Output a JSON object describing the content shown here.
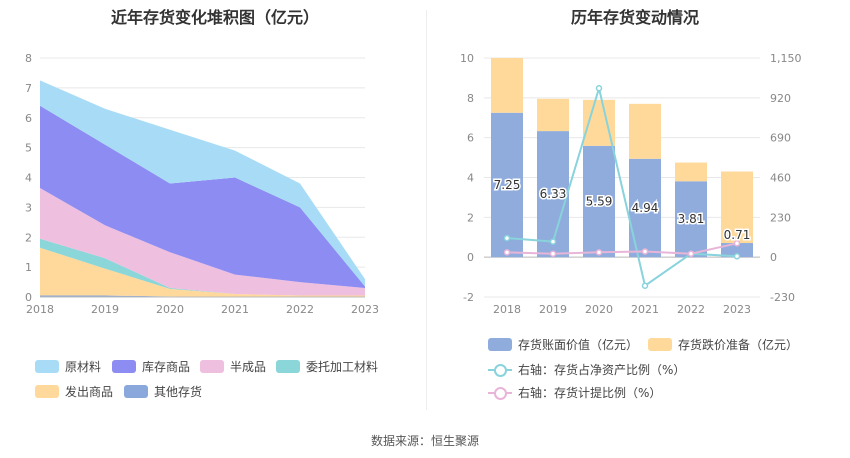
{
  "left_chart": {
    "title": "近年存货变化堆积图（亿元）"
  },
  "right_chart": {
    "title": "历年存货变动情况"
  },
  "source": "数据来源：恒生聚源",
  "chart_data": [
    {
      "type": "area",
      "title": "近年存货变化堆积图（亿元）",
      "x": [
        "2018",
        "2019",
        "2020",
        "2021",
        "2022",
        "2023"
      ],
      "ylim": [
        0,
        8
      ],
      "yticks": [
        "0",
        "1",
        "2",
        "3",
        "4",
        "5",
        "6",
        "7",
        "8"
      ],
      "stacked": true,
      "grid": true,
      "legend_position": "bottom",
      "series": [
        {
          "name": "其他存货",
          "color": "#8aa8dc",
          "values": [
            0.05,
            0.05,
            0.02,
            0.0,
            0.0,
            0.0
          ]
        },
        {
          "name": "发出商品",
          "color": "#ffd89b",
          "values": [
            1.6,
            0.9,
            0.25,
            0.1,
            0.05,
            0.05
          ]
        },
        {
          "name": "委托加工材料",
          "color": "#8ad6d8",
          "values": [
            0.3,
            0.35,
            0.03,
            0.0,
            0.0,
            0.0
          ]
        },
        {
          "name": "半成品",
          "color": "#efbfdf",
          "values": [
            1.7,
            1.1,
            1.2,
            0.65,
            0.45,
            0.25
          ]
        },
        {
          "name": "库存商品",
          "color": "#8c8cf2",
          "values": [
            2.75,
            2.7,
            2.3,
            3.25,
            2.5,
            0.05
          ]
        },
        {
          "name": "原材料",
          "color": "#a8dcf6",
          "values": [
            0.85,
            1.2,
            1.8,
            0.9,
            0.8,
            0.25
          ]
        }
      ],
      "legend_order": [
        "原材料",
        "库存商品",
        "半成品",
        "委托加工材料",
        "发出商品",
        "其他存货"
      ]
    },
    {
      "type": "bar",
      "title": "历年存货变动情况",
      "categories": [
        "2018",
        "2019",
        "2020",
        "2021",
        "2022",
        "2023"
      ],
      "ylim": [
        -2,
        10
      ],
      "yticks": [
        "-2",
        "0",
        "2",
        "4",
        "6",
        "8",
        "10"
      ],
      "y2lim": [
        -230,
        1150
      ],
      "y2ticks": [
        "-230",
        "0",
        "230",
        "460",
        "690",
        "920",
        "1,150"
      ],
      "stacked": true,
      "legend_position": "bottom",
      "series": [
        {
          "name": "存货账面价值（亿元）",
          "color": "#8facdc",
          "axis": "left",
          "values": [
            7.25,
            6.33,
            5.59,
            4.94,
            3.81,
            0.71
          ],
          "labels": [
            "7.25",
            "6.33",
            "5.59",
            "4.94",
            "3.81",
            "0.71"
          ]
        },
        {
          "name": "存货跌价准备（亿元）",
          "color": "#ffd99a",
          "axis": "left",
          "values": [
            2.75,
            1.62,
            2.31,
            2.76,
            0.94,
            3.59
          ]
        },
        {
          "name": "右轴：存货占净资产比例（%）",
          "type": "line",
          "color": "#88d3dc",
          "axis": "right",
          "values": [
            110,
            90,
            975,
            -165,
            20,
            5
          ]
        },
        {
          "name": "右轴：存货计提比例（%）",
          "type": "line",
          "color": "#e8b5d9",
          "axis": "right",
          "values": [
            28,
            20,
            28,
            33,
            20,
            80
          ]
        }
      ]
    }
  ]
}
